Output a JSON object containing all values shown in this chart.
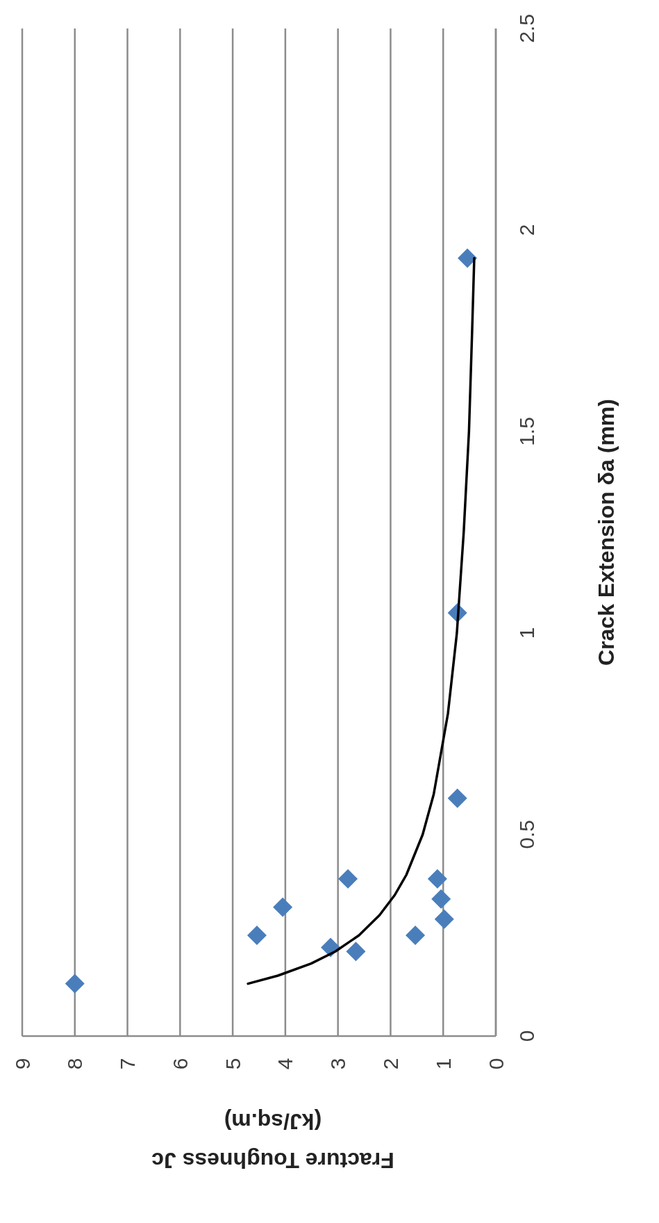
{
  "chart_data": {
    "type": "scatter",
    "xlabel": "Fracture Toughness  Jc (kJ/sq.m)",
    "ylabel": "Crack Extension δa (mm)",
    "xlim": [
      9,
      0
    ],
    "xticks": [
      0,
      1,
      2,
      3,
      4,
      5,
      6,
      7,
      8,
      9
    ],
    "ylim": [
      0,
      2.5
    ],
    "yticks": [
      0,
      0.5,
      1,
      1.5,
      2,
      2.5
    ],
    "grid": "x",
    "series": [
      {
        "color": "#4a7ebb",
        "marker": "diamond",
        "x": [
          8.0,
          4.54,
          4.05,
          2.81,
          3.14,
          2.66,
          1.53,
          1.11,
          1.04,
          0.98,
          0.73,
          0.73,
          0.54
        ],
        "values": [
          0.13,
          0.25,
          0.32,
          0.39,
          0.22,
          0.21,
          0.25,
          0.39,
          0.34,
          0.29,
          0.59,
          1.05,
          1.93
        ]
      },
      {
        "type": "line",
        "color": "#000000",
        "marker": "none",
        "line_style": "solid",
        "x": [
          4.71,
          4.14,
          3.51,
          3.05,
          2.6,
          2.21,
          1.92,
          1.7,
          1.39,
          1.18,
          0.91,
          0.74,
          0.61,
          0.51,
          0.45,
          0.41
        ],
        "values": [
          0.13,
          0.15,
          0.18,
          0.21,
          0.25,
          0.3,
          0.35,
          0.4,
          0.5,
          0.6,
          0.8,
          1.0,
          1.25,
          1.5,
          1.75,
          1.93
        ]
      }
    ]
  }
}
